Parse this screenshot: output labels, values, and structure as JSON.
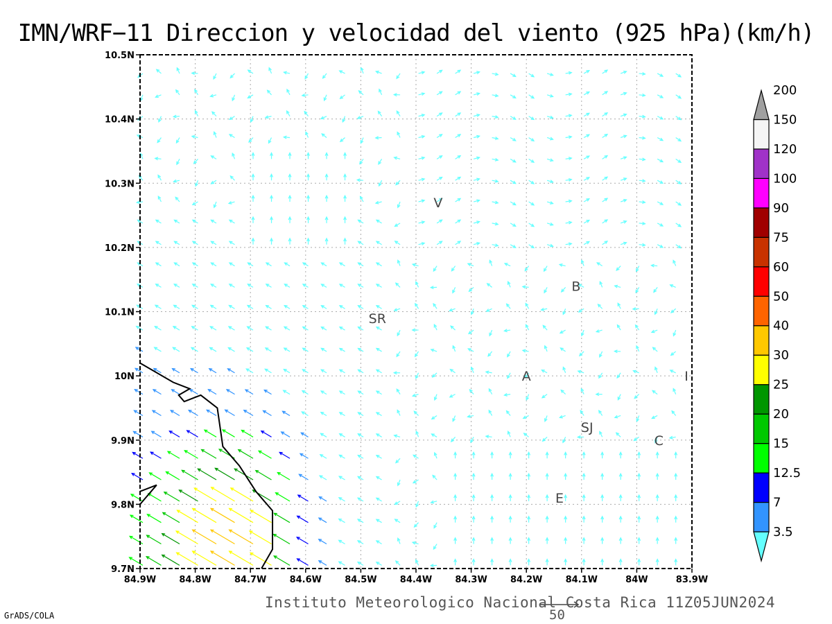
{
  "title": "IMN/WRF−11 Direccion y velocidad del viento (925 hPa)(km/h)",
  "footer": "Instituto Meteorologico Nacional Costa Rica 11Z05JUN2024",
  "software_credit": "GrADS/COLA",
  "reference_vector": {
    "label": "50",
    "value_kmh": 50
  },
  "map": {
    "lon_range": [
      -84.9,
      -83.9
    ],
    "lat_range": [
      9.7,
      10.5
    ],
    "x_ticks": [
      "84.9W",
      "84.8W",
      "84.7W",
      "84.6W",
      "84.5W",
      "84.4W",
      "84.3W",
      "84.2W",
      "84.1W",
      "84W",
      "83.9W"
    ],
    "y_ticks": [
      "9.7N",
      "9.8N",
      "9.9N",
      "10N",
      "10.1N",
      "10.2N",
      "10.3N",
      "10.4N",
      "10.5N"
    ],
    "grid": "dotted",
    "vector_spacing_deg": 0.0333
  },
  "city_labels": [
    {
      "text": "V",
      "lon": -84.36,
      "lat": 10.27
    },
    {
      "text": "B",
      "lon": -84.11,
      "lat": 10.14
    },
    {
      "text": "SR",
      "lon": -84.47,
      "lat": 10.09
    },
    {
      "text": "A",
      "lon": -84.2,
      "lat": 10.0
    },
    {
      "text": "I",
      "lon": -83.91,
      "lat": 10.0
    },
    {
      "text": "SJ",
      "lon": -84.09,
      "lat": 9.92
    },
    {
      "text": "C",
      "lon": -83.96,
      "lat": 9.9
    },
    {
      "text": "E",
      "lon": -84.14,
      "lat": 9.81
    }
  ],
  "coastline": [
    [
      -84.9,
      10.02
    ],
    [
      -84.84,
      9.99
    ],
    [
      -84.81,
      9.98
    ],
    [
      -84.83,
      9.97
    ],
    [
      -84.82,
      9.96
    ],
    [
      -84.79,
      9.97
    ],
    [
      -84.76,
      9.95
    ],
    [
      -84.75,
      9.89
    ],
    [
      -84.72,
      9.86
    ],
    [
      -84.69,
      9.82
    ],
    [
      -84.66,
      9.79
    ],
    [
      -84.66,
      9.73
    ],
    [
      -84.68,
      9.7
    ]
  ],
  "coastline_south": [
    [
      -84.9,
      9.8
    ],
    [
      -84.87,
      9.83
    ],
    [
      -84.9,
      9.82
    ]
  ],
  "colorbar": {
    "labels": [
      "3.5",
      "7",
      "12.5",
      "15",
      "20",
      "25",
      "30",
      "40",
      "50",
      "60",
      "75",
      "90",
      "100",
      "120",
      "150",
      "200"
    ],
    "colors": [
      "#64ffff",
      "#3294ff",
      "#0000ff",
      "#00ff00",
      "#00c800",
      "#009600",
      "#ffff00",
      "#ffc800",
      "#ff6400",
      "#ff0000",
      "#c83200",
      "#a00000",
      "#ff00ff",
      "#a032c8",
      "#f5f5f5",
      "#a0a0a0"
    ]
  }
}
